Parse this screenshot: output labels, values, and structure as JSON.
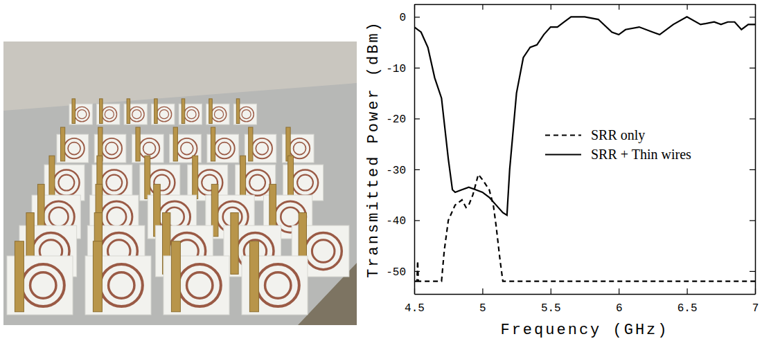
{
  "chart_data": {
    "type": "line",
    "x_label": "Frequency (GHz)",
    "y_label": "Transmitted Power (dBm)",
    "xlim": [
      4.5,
      7
    ],
    "xticks": [
      4.5,
      5,
      5.5,
      6,
      6.5,
      7
    ],
    "ylim": [
      -54.5,
      2.5
    ],
    "yticks": [
      0,
      -10,
      -20,
      -30,
      -40,
      -50
    ],
    "grid": false,
    "legend": "right",
    "series": [
      {
        "name": "SRR only",
        "color": "#000000",
        "line_style": "dashed",
        "x": [
          4.5,
          4.52,
          4.525,
          4.53,
          4.6,
          4.7,
          4.72,
          4.75,
          4.8,
          4.85,
          4.88,
          4.9,
          4.93,
          4.97,
          5.0,
          5.05,
          5.08,
          5.1,
          5.13,
          5.15,
          5.5,
          6.0,
          6.5,
          7.0
        ],
        "values": [
          -52,
          -52,
          -48,
          -52,
          -52,
          -52,
          -46,
          -40,
          -37,
          -36,
          -37.5,
          -37,
          -35,
          -31,
          -32,
          -34,
          -37,
          -41,
          -48,
          -52,
          -52,
          -52,
          -52,
          -52
        ]
      },
      {
        "name": "SRR + Thin wires",
        "color": "#000000",
        "line_style": "solid",
        "x": [
          4.5,
          4.55,
          4.6,
          4.65,
          4.7,
          4.75,
          4.78,
          4.8,
          4.85,
          4.9,
          4.95,
          5.0,
          5.05,
          5.1,
          5.15,
          5.18,
          5.2,
          5.25,
          5.3,
          5.35,
          5.4,
          5.45,
          5.5,
          5.55,
          5.6,
          5.65,
          5.75,
          5.85,
          5.95,
          6.0,
          6.05,
          6.15,
          6.25,
          6.3,
          6.4,
          6.5,
          6.6,
          6.7,
          6.75,
          6.8,
          6.85,
          6.9,
          6.95,
          7.0
        ],
        "values": [
          -2,
          -3,
          -6,
          -12,
          -16,
          -28,
          -34,
          -34.5,
          -34,
          -33.5,
          -34,
          -34.5,
          -35.5,
          -37,
          -38.5,
          -39,
          -30,
          -15,
          -8,
          -6,
          -5.5,
          -3.5,
          -2,
          -2,
          -1,
          0,
          0,
          -0.5,
          -3,
          -3.5,
          -2.5,
          -2,
          -3,
          -3.5,
          -1.5,
          0,
          -1.5,
          -1,
          -1.5,
          -1,
          -1,
          -2.5,
          -1.5,
          -1.5
        ]
      }
    ]
  }
}
